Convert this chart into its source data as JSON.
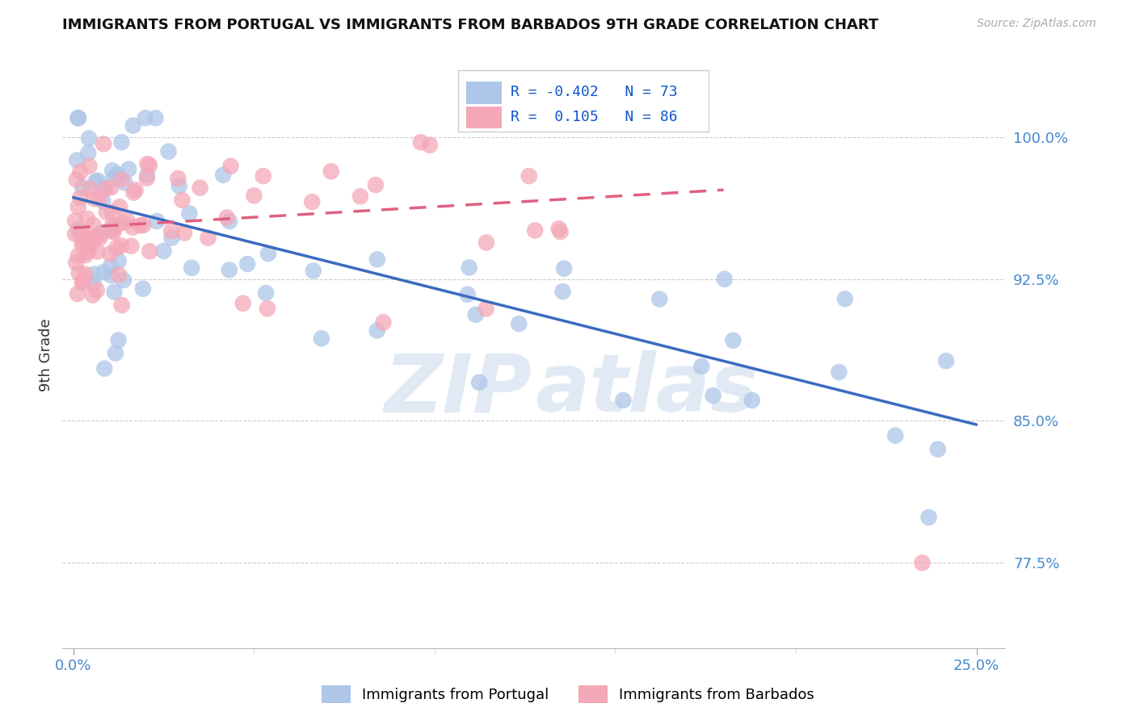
{
  "title": "IMMIGRANTS FROM PORTUGAL VS IMMIGRANTS FROM BARBADOS 9TH GRADE CORRELATION CHART",
  "source": "Source: ZipAtlas.com",
  "ylabel": "9th Grade",
  "ytick_labels": [
    "100.0%",
    "92.5%",
    "85.0%",
    "77.5%"
  ],
  "ytick_values": [
    1.0,
    0.925,
    0.85,
    0.775
  ],
  "xlim": [
    0.0,
    0.25
  ],
  "ylim": [
    0.73,
    1.04
  ],
  "r_portugal": -0.402,
  "n_portugal": 73,
  "r_barbados": 0.105,
  "n_barbados": 86,
  "color_portugal": "#aec6e8",
  "color_barbados": "#f4a8b8",
  "line_color_portugal": "#3a6bbf",
  "line_color_barbados": "#e06080",
  "background_color": "#ffffff",
  "watermark_zip": "ZIP",
  "watermark_atlas": "atlas",
  "legend_r1": "R = -0.402",
  "legend_n1": "N = 73",
  "legend_r2": "R =  0.105",
  "legend_n2": "N = 86",
  "legend_label1": "Immigrants from Portugal",
  "legend_label2": "Immigrants from Barbados",
  "port_line_x0": 0.0,
  "port_line_y0": 0.968,
  "port_line_x1": 0.25,
  "port_line_y1": 0.848,
  "barb_line_x0": 0.0,
  "barb_line_y0": 0.952,
  "barb_line_x1": 0.18,
  "barb_line_y1": 0.972
}
